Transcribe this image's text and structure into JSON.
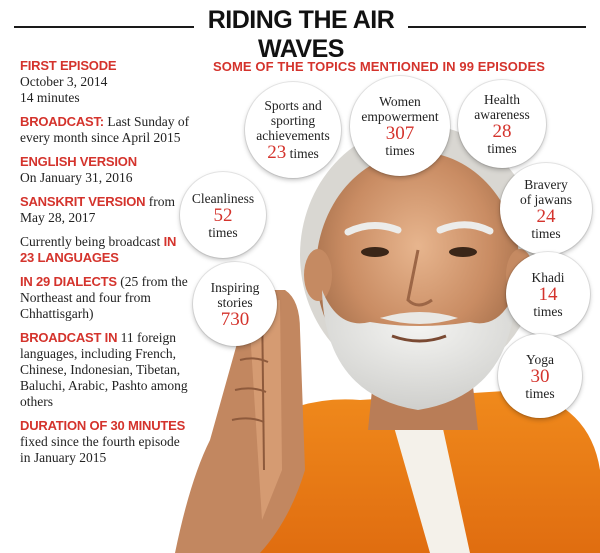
{
  "title": "RIDING THE AIR WAVES",
  "facts": {
    "first_episode": {
      "heading": "FIRST EPISODE",
      "date": "October 3, 2014",
      "duration": "14 minutes"
    },
    "broadcast": {
      "heading": "BROADCAST:",
      "text": " Last Sunday of every month since April 2015"
    },
    "english": {
      "heading": "ENGLISH VERSION",
      "text": "On January 31, 2016"
    },
    "sanskrit": {
      "heading": "SANSKRIT VERSION",
      "text": " from May 28, 2017"
    },
    "languages": {
      "text": "Currently being broadcast ",
      "highlight": "IN 23 LANGUAGES"
    },
    "dialects": {
      "heading": "IN 29 DIALECTS",
      "text": " (25 from the Northeast and four from Chhattisgarh)"
    },
    "foreign": {
      "heading": "BROADCAST IN",
      "text": " 11 foreign languages, including French, Chinese, Indonesian, Tibetan, Baluchi, Arabic, Pashto among others"
    },
    "duration": {
      "heading": "DURATION OF 30 MINUTES",
      "text": " fixed since the fourth episode in January 2015"
    }
  },
  "topics_heading": "SOME OF THE TOPICS MENTIONED IN 99 EPISODES",
  "topics": [
    {
      "label": "Sports and\nsporting\nachievements",
      "count": "23",
      "unit": "times"
    },
    {
      "label": "Women\nempowerment",
      "count": "307",
      "unit": "times"
    },
    {
      "label": "Health\nawareness",
      "count": "28",
      "unit": "times"
    },
    {
      "label": "Cleanliness",
      "count": "52",
      "unit": "times"
    },
    {
      "label": "Bravery\nof jawans",
      "count": "24",
      "unit": "times"
    },
    {
      "label": "Inspiring\nstories",
      "count": "730",
      "unit": ""
    },
    {
      "label": "Khadi",
      "count": "14",
      "unit": "times"
    },
    {
      "label": "Yoga",
      "count": "30",
      "unit": "times"
    }
  ],
  "colors": {
    "accent": "#d4332c",
    "text": "#222222",
    "rule": "#1a1a1a"
  }
}
